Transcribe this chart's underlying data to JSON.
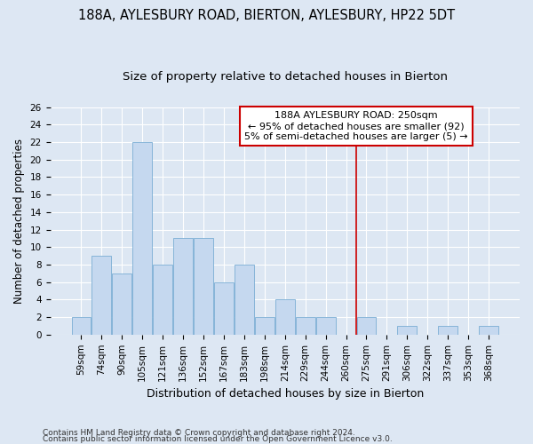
{
  "title": "188A, AYLESBURY ROAD, BIERTON, AYLESBURY, HP22 5DT",
  "subtitle": "Size of property relative to detached houses in Bierton",
  "xlabel": "Distribution of detached houses by size in Bierton",
  "ylabel": "Number of detached properties",
  "categories": [
    "59sqm",
    "74sqm",
    "90sqm",
    "105sqm",
    "121sqm",
    "136sqm",
    "152sqm",
    "167sqm",
    "183sqm",
    "198sqm",
    "214sqm",
    "229sqm",
    "244sqm",
    "260sqm",
    "275sqm",
    "291sqm",
    "306sqm",
    "322sqm",
    "337sqm",
    "353sqm",
    "368sqm"
  ],
  "values": [
    2,
    9,
    7,
    22,
    8,
    11,
    11,
    6,
    8,
    2,
    4,
    2,
    2,
    0,
    2,
    0,
    1,
    0,
    1,
    0,
    1
  ],
  "bar_color": "#c5d8ef",
  "bar_edge_color": "#7aadd4",
  "background_color": "#dde7f3",
  "grid_color": "#ffffff",
  "red_line_x": 13.5,
  "annotation_line1": "188A AYLESBURY ROAD: 250sqm",
  "annotation_line2": "← 95% of detached houses are smaller (92)",
  "annotation_line3": "5% of semi-detached houses are larger (5) →",
  "annotation_box_color": "#ffffff",
  "annotation_box_edge_color": "#cc0000",
  "red_line_color": "#cc0000",
  "ylim": [
    0,
    26
  ],
  "yticks": [
    0,
    2,
    4,
    6,
    8,
    10,
    12,
    14,
    16,
    18,
    20,
    22,
    24,
    26
  ],
  "footer_line1": "Contains HM Land Registry data © Crown copyright and database right 2024.",
  "footer_line2": "Contains public sector information licensed under the Open Government Licence v3.0.",
  "title_fontsize": 10.5,
  "subtitle_fontsize": 9.5,
  "xlabel_fontsize": 9,
  "ylabel_fontsize": 8.5,
  "tick_fontsize": 7.5,
  "annotation_fontsize": 8,
  "footer_fontsize": 6.5
}
